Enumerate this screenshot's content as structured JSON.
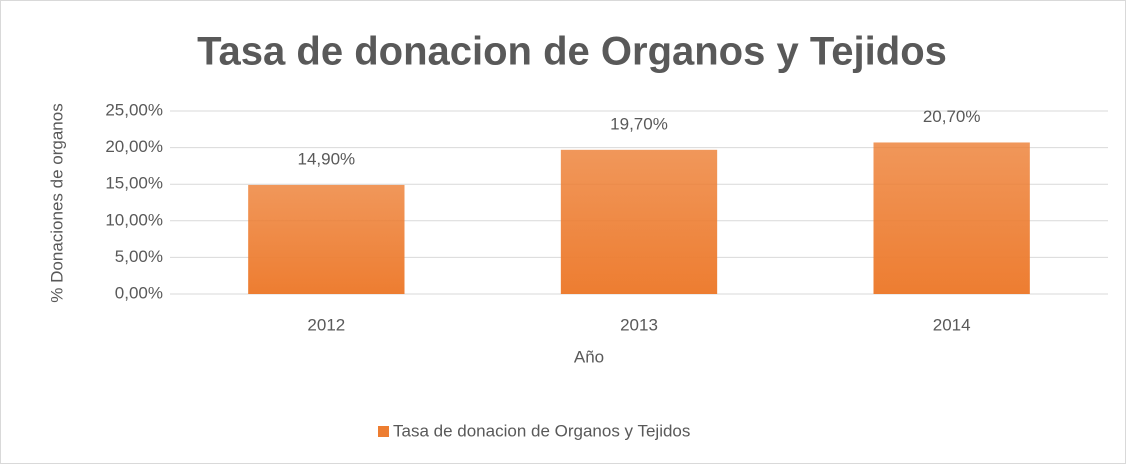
{
  "chart_data": {
    "type": "bar",
    "title": "Tasa de donacion de Organos y Tejidos",
    "x_label": "Año",
    "y_label": "% Donaciones de organos",
    "categories": [
      "2012",
      "2013",
      "2014"
    ],
    "series": [
      {
        "name": "Tasa de donacion de Organos y Tejidos",
        "color": "#ed7d31",
        "values": [
          14.9,
          19.7,
          20.7
        ],
        "value_labels": [
          "14,90%",
          "19,70%",
          "20,70%"
        ]
      }
    ],
    "ylim": [
      0,
      25
    ],
    "yticks": [
      {
        "value": 0,
        "label": "0,00%"
      },
      {
        "value": 5,
        "label": "5,00%"
      },
      {
        "value": 10,
        "label": "10,00%"
      },
      {
        "value": 15,
        "label": "15,00%"
      },
      {
        "value": 20,
        "label": "20,00%"
      },
      {
        "value": 25,
        "label": "25,00%"
      }
    ],
    "grid": true,
    "legend": "bottom"
  }
}
